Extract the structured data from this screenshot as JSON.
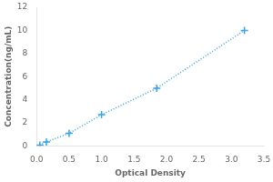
{
  "chart_data": {
    "type": "line",
    "x": [
      0.05,
      0.15,
      0.5,
      1.0,
      1.85,
      3.2
    ],
    "values": [
      0.08,
      0.35,
      1.1,
      2.7,
      5.0,
      10.0
    ],
    "xlabel": "Optical Density",
    "ylabel": "Concentration(ng/mL)",
    "xlim": [
      0,
      3.5
    ],
    "ylim": [
      0,
      12
    ],
    "xticks": [
      {
        "value": 0,
        "label": "0.0"
      },
      {
        "value": 0.5,
        "label": "0.5"
      },
      {
        "value": 1,
        "label": "1.0"
      },
      {
        "value": 1.5,
        "label": "1.5"
      },
      {
        "value": 2,
        "label": "2.0"
      },
      {
        "value": 2.5,
        "label": "2.5"
      },
      {
        "value": 3,
        "label": "3.0"
      },
      {
        "value": 3.5,
        "label": "3.5"
      }
    ],
    "yticks": [
      0,
      2,
      4,
      6,
      8,
      10,
      12
    ],
    "marker": "plus",
    "line_style": "dotted",
    "grid": false
  }
}
